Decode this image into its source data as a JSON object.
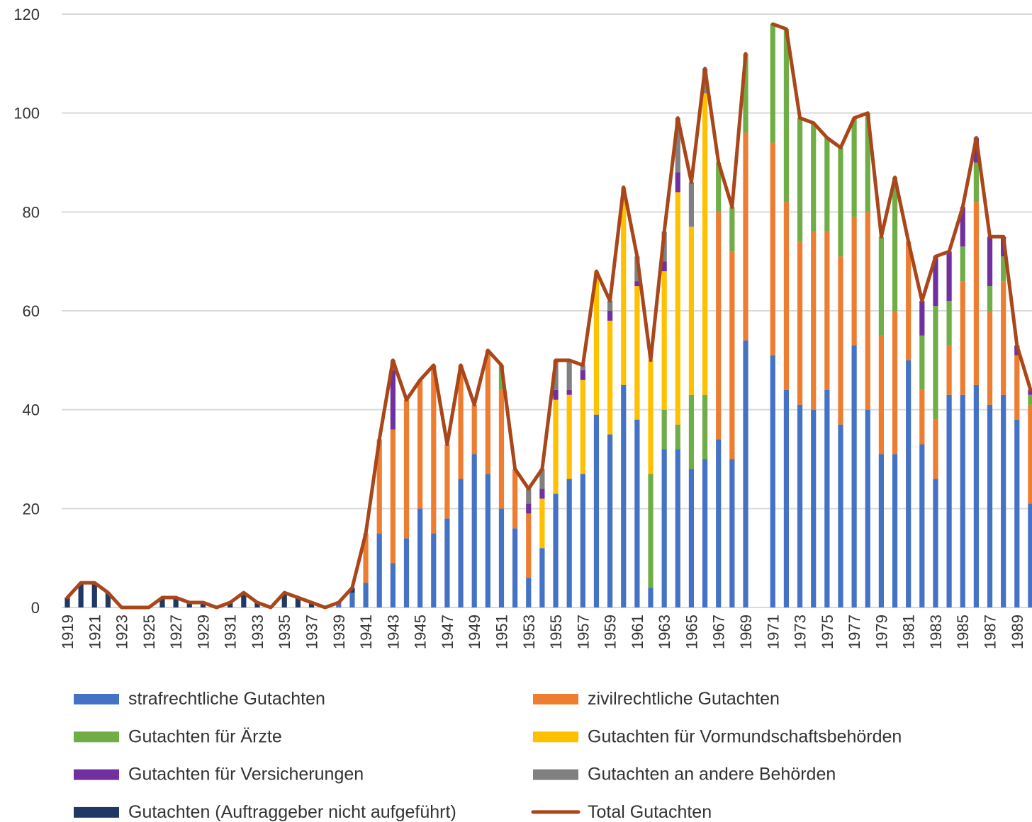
{
  "chart_data": {
    "type": "bar",
    "stacked": true,
    "categories": [
      "1919",
      null,
      "1921",
      null,
      "1923",
      null,
      "1925",
      null,
      "1927",
      null,
      "1929",
      null,
      "1931",
      null,
      "1933",
      null,
      "1935",
      null,
      "1937",
      null,
      "1939",
      null,
      "1941",
      null,
      "1943",
      null,
      "1945",
      null,
      "1947",
      null,
      "1949",
      null,
      "1951",
      null,
      "1953",
      null,
      "1955",
      null,
      "1957",
      null,
      "1959",
      null,
      "1961",
      null,
      "1963",
      null,
      "1965",
      null,
      "1967",
      null,
      "1969",
      null,
      "1971",
      null,
      "1973",
      null,
      "1975",
      null,
      "1977",
      null,
      "1979",
      null,
      "1981",
      null,
      "1983",
      null,
      "1985",
      null,
      "1987",
      null,
      "1989",
      null
    ],
    "series": [
      {
        "name": "strafrechtliche Gutachten",
        "color": "#4472c4",
        "values": [
          0,
          0,
          0,
          0,
          0,
          0,
          0,
          0,
          0,
          0,
          0,
          0,
          0,
          0,
          0,
          0,
          0,
          0,
          0,
          0,
          1,
          3,
          5,
          15,
          9,
          14,
          20,
          15,
          18,
          26,
          31,
          27,
          20,
          16,
          6,
          12,
          23,
          26,
          27,
          39,
          35,
          45,
          38,
          4,
          32,
          32,
          28,
          30,
          34,
          30,
          54,
          null,
          51,
          44,
          41,
          40,
          44,
          37,
          53,
          40,
          31,
          31,
          50,
          33,
          26,
          43,
          43,
          45,
          41,
          43,
          38,
          21
        ]
      },
      {
        "name": "zivilrechtliche Gutachten",
        "color": "#ed7d31",
        "values": [
          0,
          0,
          0,
          0,
          0,
          0,
          0,
          0,
          0,
          0,
          0,
          0,
          0,
          0,
          0,
          0,
          0,
          0,
          0,
          0,
          0,
          0,
          10,
          19,
          27,
          28,
          26,
          34,
          15,
          23,
          10,
          25,
          24,
          12,
          13,
          0,
          0,
          0,
          0,
          0,
          0,
          0,
          0,
          0,
          0,
          0,
          0,
          0,
          46,
          42,
          42,
          null,
          43,
          38,
          33,
          36,
          32,
          34,
          26,
          40,
          24,
          29,
          24,
          11,
          12,
          10,
          23,
          37,
          19,
          23,
          13,
          20
        ]
      },
      {
        "name": "Gutachten für Ärzte",
        "color": "#70ad47",
        "values": [
          0,
          0,
          0,
          0,
          0,
          0,
          0,
          0,
          0,
          0,
          0,
          0,
          0,
          0,
          0,
          0,
          0,
          0,
          0,
          0,
          0,
          0,
          0,
          0,
          0,
          0,
          0,
          0,
          0,
          0,
          0,
          0,
          5,
          0,
          0,
          0,
          0,
          0,
          0,
          0,
          0,
          0,
          0,
          23,
          8,
          5,
          15,
          13,
          10,
          9,
          16,
          null,
          24,
          35,
          25,
          22,
          19,
          22,
          20,
          20,
          20,
          27,
          0,
          11,
          23,
          9,
          7,
          8,
          5,
          5,
          0,
          2
        ]
      },
      {
        "name": "Gutachten für Vormundschaftsbehörden",
        "color": "#ffc000",
        "values": [
          0,
          0,
          0,
          0,
          0,
          0,
          0,
          0,
          0,
          0,
          0,
          0,
          0,
          0,
          0,
          0,
          0,
          0,
          0,
          0,
          0,
          0,
          0,
          0,
          0,
          0,
          0,
          0,
          0,
          0,
          0,
          0,
          0,
          0,
          0,
          10,
          19,
          17,
          19,
          29,
          23,
          40,
          27,
          23,
          28,
          47,
          34,
          61,
          0,
          0,
          0,
          null,
          0,
          0,
          0,
          0,
          0,
          0,
          0,
          0,
          0,
          0,
          0,
          0,
          0,
          0,
          0,
          0,
          0,
          0,
          0,
          0
        ]
      },
      {
        "name": "Gutachten für Versicherungen",
        "color": "#7030a0",
        "values": [
          0,
          0,
          0,
          0,
          0,
          0,
          0,
          0,
          0,
          0,
          0,
          0,
          0,
          0,
          0,
          0,
          0,
          0,
          0,
          0,
          0,
          0,
          0,
          0,
          12,
          0,
          0,
          0,
          0,
          0,
          0,
          0,
          0,
          0,
          2,
          2,
          2,
          1,
          2,
          0,
          2,
          0,
          1,
          0,
          2,
          4,
          0,
          0,
          0,
          0,
          0,
          null,
          0,
          0,
          0,
          0,
          0,
          0,
          0,
          0,
          0,
          0,
          0,
          7,
          10,
          10,
          8,
          5,
          10,
          4,
          2,
          1
        ]
      },
      {
        "name": "Gutachten an andere Behörden",
        "color": "#808080",
        "values": [
          0,
          0,
          0,
          0,
          0,
          0,
          0,
          0,
          0,
          0,
          0,
          0,
          0,
          0,
          0,
          0,
          0,
          0,
          0,
          0,
          0,
          0,
          0,
          0,
          2,
          0,
          0,
          0,
          0,
          0,
          0,
          0,
          0,
          0,
          3,
          4,
          6,
          6,
          1,
          0,
          2,
          0,
          5,
          0,
          6,
          11,
          9,
          5,
          0,
          0,
          0,
          null,
          0,
          0,
          0,
          0,
          0,
          0,
          0,
          0,
          0,
          0,
          0,
          0,
          0,
          0,
          0,
          0,
          0,
          0,
          0,
          0
        ]
      },
      {
        "name": "Gutachten (Auftraggeber nicht aufgeführt)",
        "color": "#203864",
        "values": [
          2,
          5,
          5,
          3,
          0,
          0,
          0,
          2,
          2,
          1,
          1,
          0,
          1,
          3,
          1,
          0,
          3,
          2,
          1,
          0,
          0,
          1,
          0,
          0,
          0,
          0,
          0,
          0,
          0,
          0,
          0,
          0,
          0,
          0,
          0,
          0,
          0,
          0,
          0,
          0,
          0,
          0,
          0,
          0,
          0,
          0,
          0,
          0,
          0,
          0,
          0,
          null,
          0,
          0,
          0,
          0,
          0,
          0,
          0,
          0,
          0,
          0,
          0,
          0,
          0,
          0,
          0,
          0,
          0,
          0,
          0,
          0
        ]
      },
      {
        "name": "Total Gutachten",
        "color": "#a9461a",
        "type": "line",
        "values": [
          2,
          5,
          5,
          3,
          0,
          0,
          0,
          2,
          2,
          1,
          1,
          0,
          1,
          3,
          1,
          0,
          3,
          2,
          1,
          0,
          1,
          4,
          15,
          34,
          50,
          42,
          46,
          49,
          33,
          49,
          41,
          52,
          49,
          28,
          24,
          28,
          50,
          50,
          49,
          68,
          62,
          85,
          71,
          50,
          76,
          99,
          86,
          109,
          90,
          81,
          112,
          null,
          118,
          117,
          99,
          98,
          95,
          93,
          99,
          100,
          75,
          87,
          74,
          62,
          71,
          72,
          81,
          95,
          75,
          75,
          53,
          44
        ]
      }
    ],
    "ylim": [
      0,
      120
    ],
    "yticks": [
      0,
      20,
      40,
      60,
      80,
      100,
      120
    ],
    "grid": true,
    "legend": "bottom"
  }
}
